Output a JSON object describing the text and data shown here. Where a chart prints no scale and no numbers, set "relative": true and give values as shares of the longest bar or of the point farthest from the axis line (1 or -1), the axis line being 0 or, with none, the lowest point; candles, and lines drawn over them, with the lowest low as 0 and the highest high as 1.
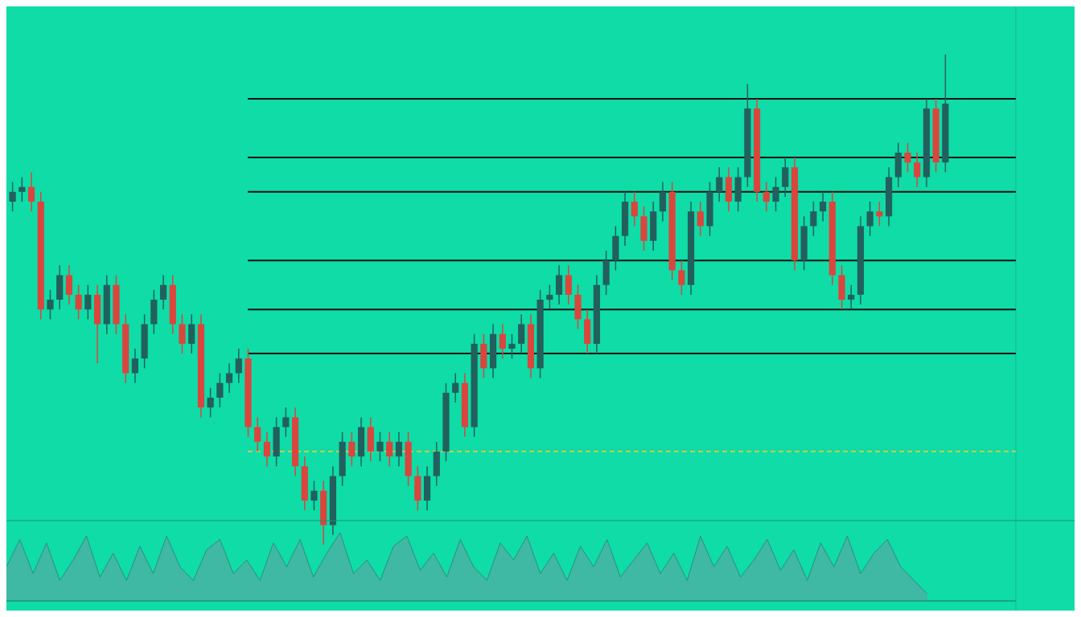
{
  "chart_data": [
    {
      "type": "candlestick",
      "relative": true,
      "categories": [
        null,
        null,
        null,
        null,
        null,
        null,
        null,
        null,
        null,
        null,
        null,
        null,
        null,
        null,
        null,
        null,
        null,
        null,
        null,
        null,
        null,
        null,
        null,
        null,
        null,
        null,
        null,
        null,
        null,
        null,
        null,
        null,
        null,
        null,
        null,
        null,
        null,
        null,
        null,
        null,
        null,
        null,
        null,
        null,
        null,
        null,
        null,
        null,
        null,
        null,
        null,
        null,
        null,
        null,
        null,
        null,
        null,
        null,
        null,
        null,
        null,
        null,
        null,
        null,
        null,
        null,
        null,
        null,
        null,
        null,
        null,
        null,
        null,
        null,
        null,
        null,
        null,
        null,
        null,
        null,
        null,
        null,
        null,
        null,
        null,
        null,
        null,
        null,
        null,
        null,
        null,
        null,
        null,
        null,
        null,
        null,
        null,
        null,
        null,
        null
      ],
      "ohlc": [
        [
          0.7,
          0.74,
          0.68,
          0.72
        ],
        [
          0.72,
          0.75,
          0.7,
          0.73
        ],
        [
          0.73,
          0.76,
          0.68,
          0.7
        ],
        [
          0.7,
          0.72,
          0.46,
          0.48
        ],
        [
          0.48,
          0.52,
          0.46,
          0.5
        ],
        [
          0.5,
          0.57,
          0.48,
          0.55
        ],
        [
          0.55,
          0.57,
          0.49,
          0.51
        ],
        [
          0.51,
          0.53,
          0.46,
          0.48
        ],
        [
          0.48,
          0.53,
          0.46,
          0.51
        ],
        [
          0.51,
          0.53,
          0.37,
          0.45
        ],
        [
          0.45,
          0.55,
          0.43,
          0.53
        ],
        [
          0.53,
          0.55,
          0.43,
          0.45
        ],
        [
          0.45,
          0.47,
          0.33,
          0.35
        ],
        [
          0.35,
          0.4,
          0.33,
          0.38
        ],
        [
          0.38,
          0.47,
          0.36,
          0.45
        ],
        [
          0.45,
          0.52,
          0.43,
          0.5
        ],
        [
          0.5,
          0.55,
          0.48,
          0.53
        ],
        [
          0.53,
          0.55,
          0.43,
          0.45
        ],
        [
          0.45,
          0.47,
          0.39,
          0.41
        ],
        [
          0.41,
          0.47,
          0.39,
          0.45
        ],
        [
          0.45,
          0.47,
          0.26,
          0.28
        ],
        [
          0.28,
          0.32,
          0.26,
          0.3
        ],
        [
          0.3,
          0.35,
          0.28,
          0.33
        ],
        [
          0.33,
          0.37,
          0.31,
          0.35
        ],
        [
          0.35,
          0.4,
          0.33,
          0.38
        ],
        [
          0.38,
          0.4,
          0.22,
          0.24
        ],
        [
          0.24,
          0.26,
          0.19,
          0.21
        ],
        [
          0.21,
          0.23,
          0.16,
          0.18
        ],
        [
          0.18,
          0.26,
          0.16,
          0.24
        ],
        [
          0.24,
          0.28,
          0.22,
          0.26
        ],
        [
          0.26,
          0.28,
          0.14,
          0.16
        ],
        [
          0.16,
          0.18,
          0.07,
          0.09
        ],
        [
          0.09,
          0.13,
          0.07,
          0.11
        ],
        [
          0.11,
          0.13,
          0.0,
          0.04
        ],
        [
          0.04,
          0.16,
          0.02,
          0.14
        ],
        [
          0.14,
          0.23,
          0.12,
          0.21
        ],
        [
          0.21,
          0.23,
          0.16,
          0.18
        ],
        [
          0.18,
          0.26,
          0.16,
          0.24
        ],
        [
          0.24,
          0.26,
          0.17,
          0.19
        ],
        [
          0.19,
          0.23,
          0.17,
          0.21
        ],
        [
          0.21,
          0.23,
          0.16,
          0.18
        ],
        [
          0.18,
          0.23,
          0.16,
          0.21
        ],
        [
          0.21,
          0.23,
          0.12,
          0.14
        ],
        [
          0.14,
          0.16,
          0.07,
          0.09
        ],
        [
          0.09,
          0.16,
          0.07,
          0.14
        ],
        [
          0.14,
          0.21,
          0.12,
          0.19
        ],
        [
          0.19,
          0.33,
          0.17,
          0.31
        ],
        [
          0.31,
          0.35,
          0.29,
          0.33
        ],
        [
          0.33,
          0.35,
          0.22,
          0.24
        ],
        [
          0.24,
          0.43,
          0.22,
          0.41
        ],
        [
          0.41,
          0.43,
          0.34,
          0.36
        ],
        [
          0.36,
          0.45,
          0.34,
          0.43
        ],
        [
          0.43,
          0.45,
          0.38,
          0.4
        ],
        [
          0.4,
          0.43,
          0.38,
          0.41
        ],
        [
          0.41,
          0.47,
          0.39,
          0.45
        ],
        [
          0.45,
          0.47,
          0.34,
          0.36
        ],
        [
          0.36,
          0.52,
          0.34,
          0.5
        ],
        [
          0.5,
          0.53,
          0.48,
          0.51
        ],
        [
          0.51,
          0.57,
          0.49,
          0.55
        ],
        [
          0.55,
          0.57,
          0.49,
          0.51
        ],
        [
          0.51,
          0.53,
          0.44,
          0.46
        ],
        [
          0.46,
          0.48,
          0.39,
          0.41
        ],
        [
          0.41,
          0.55,
          0.39,
          0.53
        ],
        [
          0.53,
          0.6,
          0.51,
          0.58
        ],
        [
          0.58,
          0.65,
          0.56,
          0.63
        ],
        [
          0.63,
          0.72,
          0.61,
          0.7
        ],
        [
          0.7,
          0.72,
          0.65,
          0.67
        ],
        [
          0.67,
          0.69,
          0.6,
          0.62
        ],
        [
          0.62,
          0.7,
          0.6,
          0.68
        ],
        [
          0.68,
          0.74,
          0.66,
          0.72
        ],
        [
          0.72,
          0.74,
          0.54,
          0.56
        ],
        [
          0.56,
          0.58,
          0.51,
          0.53
        ],
        [
          0.53,
          0.7,
          0.51,
          0.68
        ],
        [
          0.68,
          0.7,
          0.63,
          0.65
        ],
        [
          0.65,
          0.74,
          0.63,
          0.72
        ],
        [
          0.72,
          0.77,
          0.7,
          0.75
        ],
        [
          0.75,
          0.77,
          0.68,
          0.7
        ],
        [
          0.7,
          0.77,
          0.68,
          0.75
        ],
        [
          0.75,
          0.94,
          0.73,
          0.89
        ],
        [
          0.89,
          0.91,
          0.7,
          0.72
        ],
        [
          0.72,
          0.74,
          0.68,
          0.7
        ],
        [
          0.7,
          0.75,
          0.68,
          0.73
        ],
        [
          0.73,
          0.79,
          0.71,
          0.77
        ],
        [
          0.77,
          0.79,
          0.56,
          0.58
        ],
        [
          0.58,
          0.67,
          0.56,
          0.65
        ],
        [
          0.65,
          0.7,
          0.63,
          0.68
        ],
        [
          0.68,
          0.72,
          0.66,
          0.7
        ],
        [
          0.7,
          0.72,
          0.53,
          0.55
        ],
        [
          0.55,
          0.57,
          0.48,
          0.5
        ],
        [
          0.5,
          0.53,
          0.48,
          0.51
        ],
        [
          0.51,
          0.67,
          0.49,
          0.65
        ],
        [
          0.65,
          0.7,
          0.63,
          0.68
        ],
        [
          0.68,
          0.7,
          0.65,
          0.67
        ],
        [
          0.67,
          0.77,
          0.65,
          0.75
        ],
        [
          0.75,
          0.82,
          0.73,
          0.8
        ],
        [
          0.8,
          0.82,
          0.76,
          0.78
        ],
        [
          0.78,
          0.8,
          0.73,
          0.75
        ],
        [
          0.75,
          0.91,
          0.73,
          0.89
        ],
        [
          0.89,
          0.91,
          0.76,
          0.78
        ],
        [
          0.78,
          1.0,
          0.76,
          0.9
        ]
      ],
      "ref_lines": [
        {
          "axis": "y",
          "value": 0.91,
          "color": "#111111"
        },
        {
          "axis": "y",
          "value": 0.79,
          "color": "#111111"
        },
        {
          "axis": "y",
          "value": 0.72,
          "color": "#111111"
        },
        {
          "axis": "y",
          "value": 0.58,
          "color": "#111111"
        },
        {
          "axis": "y",
          "value": 0.48,
          "color": "#111111"
        },
        {
          "axis": "y",
          "value": 0.39,
          "color": "#111111"
        },
        {
          "axis": "y",
          "value": 0.19,
          "color": "#c9c94a",
          "line_style": "dashed"
        }
      ]
    },
    {
      "type": "area",
      "relative": true,
      "categories": [
        null,
        null,
        null,
        null,
        null,
        null,
        null,
        null,
        null,
        null,
        null,
        null,
        null,
        null,
        null,
        null,
        null,
        null,
        null,
        null,
        null,
        null,
        null,
        null,
        null,
        null,
        null,
        null,
        null,
        null,
        null,
        null,
        null,
        null,
        null,
        null,
        null,
        null,
        null,
        null,
        null,
        null,
        null,
        null,
        null,
        null,
        null,
        null,
        null,
        null,
        null,
        null,
        null,
        null,
        null,
        null,
        null,
        null,
        null,
        null,
        null,
        null,
        null,
        null,
        null,
        null,
        null,
        null,
        null,
        null
      ],
      "series": [
        {
          "color": "#3fb8a4",
          "values": [
            0.5,
            0.9,
            0.4,
            0.85,
            0.3,
            0.6,
            0.95,
            0.35,
            0.7,
            0.3,
            0.8,
            0.4,
            0.95,
            0.5,
            0.3,
            0.75,
            0.9,
            0.4,
            0.6,
            0.3,
            0.85,
            0.5,
            0.9,
            0.35,
            0.7,
            1.0,
            0.4,
            0.6,
            0.3,
            0.8,
            0.95,
            0.45,
            0.7,
            0.35,
            0.9,
            0.5,
            0.3,
            0.85,
            0.6,
            0.95,
            0.4,
            0.7,
            0.3,
            0.8,
            0.5,
            0.9,
            0.35,
            0.6,
            0.85,
            0.4,
            0.7,
            0.3,
            0.95,
            0.5,
            0.8,
            0.35,
            0.6,
            0.9,
            0.45,
            0.75,
            0.3,
            0.85,
            0.5,
            0.95,
            0.4,
            0.7,
            0.9,
            0.5,
            0.3,
            0.1
          ]
        }
      ]
    }
  ]
}
